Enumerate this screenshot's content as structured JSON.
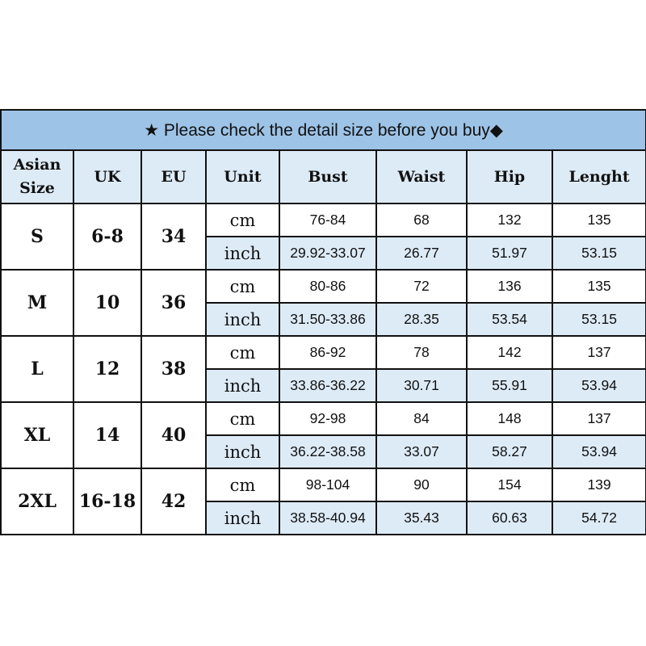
{
  "title": "★ Please check the detail size before you buy◆",
  "headers": [
    "Asian Size",
    "UK",
    "EU",
    "Unit",
    "Bust",
    "Waist",
    "Hip",
    "Lenght"
  ],
  "colors": {
    "title_bg": "#9dc3e6",
    "header_bg": "#ddebf7",
    "border": "#111111"
  },
  "rows": [
    {
      "asian": "S",
      "uk": "6-8",
      "eu": "34",
      "cm": {
        "unit": "cm",
        "bust": "76-84",
        "waist": "68",
        "hip": "132",
        "length": "135"
      },
      "inch": {
        "unit": "inch",
        "bust": "29.92-33.07",
        "waist": "26.77",
        "hip": "51.97",
        "length": "53.15"
      }
    },
    {
      "asian": "M",
      "uk": "10",
      "eu": "36",
      "cm": {
        "unit": "cm",
        "bust": "80-86",
        "waist": "72",
        "hip": "136",
        "length": "135"
      },
      "inch": {
        "unit": "inch",
        "bust": "31.50-33.86",
        "waist": "28.35",
        "hip": "53.54",
        "length": "53.15"
      }
    },
    {
      "asian": "L",
      "uk": "12",
      "eu": "38",
      "cm": {
        "unit": "cm",
        "bust": "86-92",
        "waist": "78",
        "hip": "142",
        "length": "137"
      },
      "inch": {
        "unit": "inch",
        "bust": "33.86-36.22",
        "waist": "30.71",
        "hip": "55.91",
        "length": "53.94"
      }
    },
    {
      "asian": "XL",
      "uk": "14",
      "eu": "40",
      "cm": {
        "unit": "cm",
        "bust": "92-98",
        "waist": "84",
        "hip": "148",
        "length": "137"
      },
      "inch": {
        "unit": "inch",
        "bust": "36.22-38.58",
        "waist": "33.07",
        "hip": "58.27",
        "length": "53.94"
      }
    },
    {
      "asian": "2XL",
      "uk": "16-18",
      "eu": "42",
      "cm": {
        "unit": "cm",
        "bust": "98-104",
        "waist": "90",
        "hip": "154",
        "length": "139"
      },
      "inch": {
        "unit": "inch",
        "bust": "38.58-40.94",
        "waist": "35.43",
        "hip": "60.63",
        "length": "54.72"
      }
    }
  ]
}
